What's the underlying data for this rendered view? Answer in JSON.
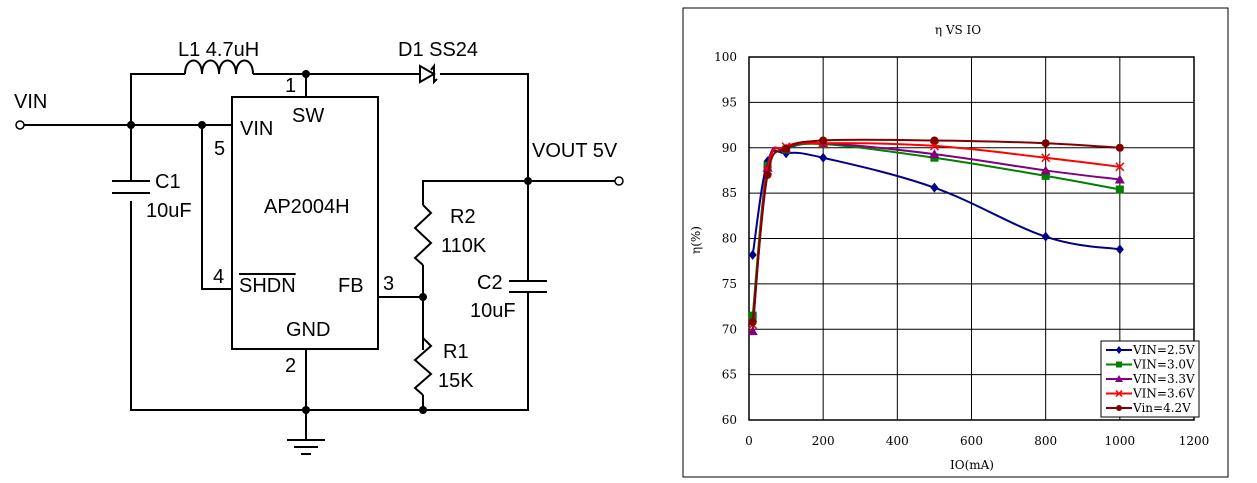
{
  "schematic": {
    "vin": "VIN",
    "l1": "L1 4.7uH",
    "d1": "D1 SS24",
    "pin1": "1",
    "pin2": "2",
    "pin3": "3",
    "pin4": "4",
    "pin5": "5",
    "ic_vin": "VIN",
    "ic_sw": "SW",
    "ic_name": "AP2004H",
    "ic_shdn": "SHDN",
    "ic_fb": "FB",
    "ic_gnd": "GND",
    "vout": "VOUT 5V",
    "c1_name": "C1",
    "c1_value": "10uF",
    "c2_name": "C2",
    "c2_value": "10uF",
    "r2_name": "R2",
    "r2_value": "110K",
    "r1_name": "R1",
    "r1_value": "15K"
  },
  "chart_data": {
    "type": "line",
    "title": "η VS IO",
    "xlabel": "IO(mA)",
    "ylabel": "η(%)",
    "xlim": [
      0,
      1200
    ],
    "ylim": [
      60,
      100
    ],
    "xticks": [
      0,
      200,
      400,
      600,
      800,
      1000,
      1200
    ],
    "yticks": [
      60,
      65,
      70,
      75,
      80,
      85,
      90,
      95,
      100
    ],
    "grid": true,
    "legend": "bottom-right",
    "x": [
      10,
      50,
      100,
      200,
      500,
      800,
      1000
    ],
    "series": [
      {
        "name": "VIN=2.5V",
        "color": "#00008b",
        "marker": "diamond",
        "values": [
          78.2,
          88.5,
          89.4,
          88.9,
          85.6,
          80.2,
          78.8
        ]
      },
      {
        "name": "VIN=3.0V",
        "color": "#008000",
        "marker": "square",
        "values": [
          71.5,
          88.0,
          89.8,
          90.4,
          88.9,
          86.9,
          85.4
        ]
      },
      {
        "name": "VIN=3.3V",
        "color": "#800080",
        "marker": "triangle",
        "values": [
          69.8,
          87.8,
          89.9,
          90.5,
          89.3,
          87.5,
          86.5
        ]
      },
      {
        "name": "VIN=3.6V",
        "color": "#ff0000",
        "marker": "x",
        "values": [
          70.5,
          87.5,
          90.1,
          90.5,
          90.2,
          88.9,
          87.9
        ]
      },
      {
        "name": "Vin=4.2V",
        "color": "#800000",
        "marker": "circle",
        "values": [
          70.8,
          87.0,
          89.9,
          90.8,
          90.8,
          90.5,
          90.0
        ]
      }
    ]
  }
}
